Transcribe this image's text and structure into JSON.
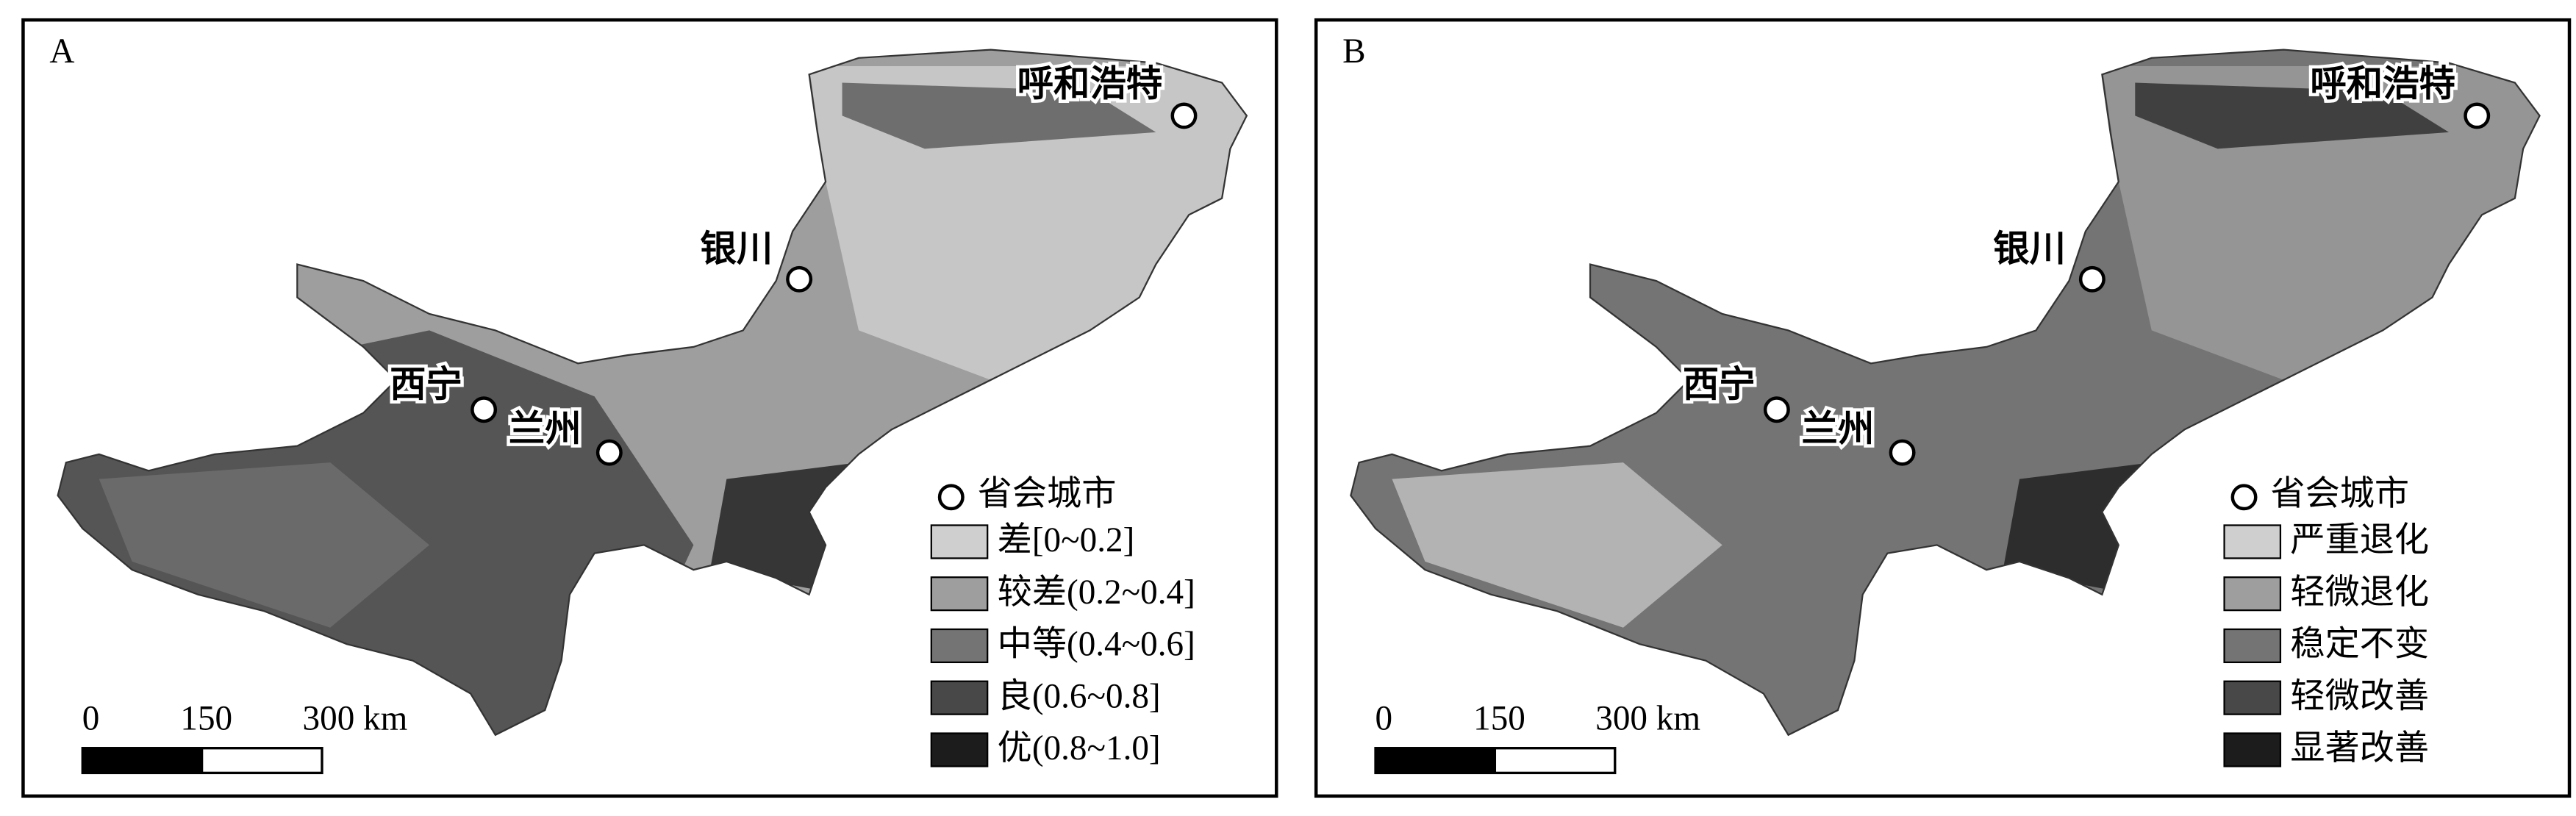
{
  "panels": [
    {
      "label": "A",
      "cities": [
        "呼和浩特",
        "银川",
        "西宁",
        "兰州"
      ],
      "legend": {
        "city_label": "省会城市",
        "items": [
          {
            "label": "差[0~0.2]",
            "color": "#cfcfcf"
          },
          {
            "label": "较差(0.2~0.4]",
            "color": "#9e9e9e"
          },
          {
            "label": "中等(0.4~0.6]",
            "color": "#747474"
          },
          {
            "label": "良(0.6~0.8]",
            "color": "#484848"
          },
          {
            "label": "优(0.8~1.0]",
            "color": "#1c1c1c"
          }
        ]
      },
      "scale_bar": [
        "0",
        "150",
        "300 km"
      ]
    },
    {
      "label": "B",
      "cities": [
        "呼和浩特",
        "银川",
        "西宁",
        "兰州"
      ],
      "legend": {
        "city_label": "省会城市",
        "items": [
          {
            "label": "严重退化",
            "color": "#cfcfcf"
          },
          {
            "label": "轻微退化",
            "color": "#9e9e9e"
          },
          {
            "label": "稳定不变",
            "color": "#747474"
          },
          {
            "label": "轻微改善",
            "color": "#484848"
          },
          {
            "label": "显著改善",
            "color": "#1c1c1c"
          }
        ]
      },
      "scale_bar": [
        "0",
        "150",
        "300 km"
      ]
    }
  ]
}
